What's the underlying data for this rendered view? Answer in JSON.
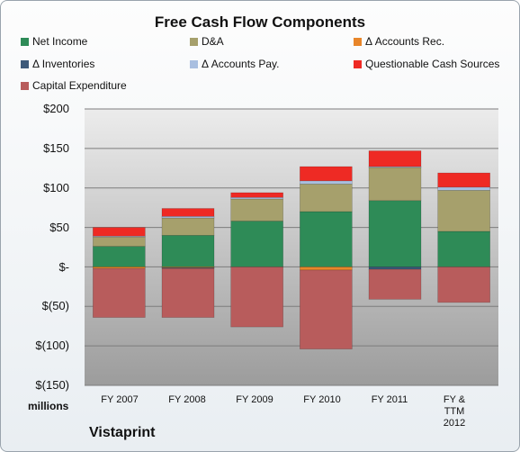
{
  "chart_data": {
    "type": "bar",
    "stacked": true,
    "title": "Free Cash Flow Components",
    "ylabel": "millions",
    "ylim": [
      -150,
      200
    ],
    "yticks": [
      "$200",
      "$150",
      "$100",
      "$50",
      "$-",
      "$(50)",
      "$(100)",
      "$(150)"
    ],
    "categories": [
      "FY 2007",
      "FY 2008",
      "FY 2009",
      "FY 2010",
      "FY 2011",
      "FY & TTM 2012"
    ],
    "series": [
      {
        "name": "Net Income",
        "color": "#2e8b57",
        "values": [
          26,
          40,
          58,
          70,
          84,
          45
        ]
      },
      {
        "name": "D&A",
        "color": "#a6a06c",
        "values": [
          12,
          22,
          28,
          35,
          42,
          52
        ]
      },
      {
        "name": "Δ Accounts Rec.",
        "color": "#e8862a",
        "values": [
          -2,
          -1,
          0,
          -4,
          0,
          0
        ]
      },
      {
        "name": "Δ Inventories",
        "color": "#3e5a7a",
        "values": [
          0,
          -1,
          0,
          0,
          -3,
          0
        ]
      },
      {
        "name": "Δ Accounts Pay.",
        "color": "#a9bfe0",
        "values": [
          1,
          2,
          2,
          4,
          1,
          4
        ]
      },
      {
        "name": "Questionable Cash Sources",
        "color": "#ee2a24",
        "values": [
          11,
          10,
          6,
          18,
          20,
          18
        ]
      },
      {
        "name": "Capital Expenditure",
        "color": "#b85c5c",
        "values": [
          -62,
          -62,
          -76,
          -100,
          -38,
          -45
        ]
      }
    ],
    "grid": true,
    "legend_position": "top"
  },
  "company": "Vistaprint"
}
